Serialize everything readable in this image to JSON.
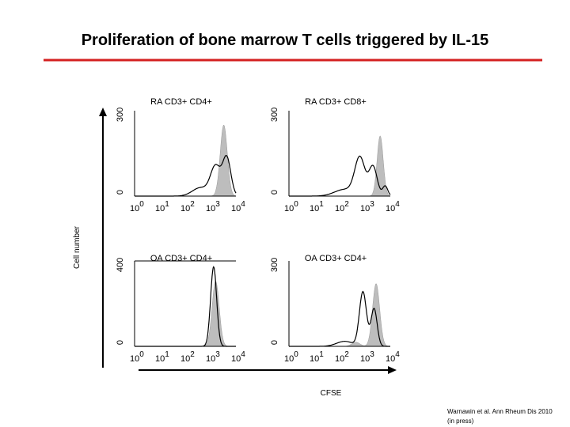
{
  "title": "Proliferation of bone marrow T cells triggered by IL-15",
  "y_axis_label": "Cell number",
  "x_axis_label": "CFSE",
  "citation": [
    "Warnawin et al. Ann Rheum Dis 2010",
    "(in press)"
  ],
  "panels": [
    {
      "label": "RA CD3+ CD4+",
      "y_ticks": [
        "0",
        "300"
      ],
      "x_ticks": [
        {
          "base": "10",
          "exp": "0"
        },
        {
          "base": "10",
          "exp": "1"
        },
        {
          "base": "10",
          "exp": "2"
        },
        {
          "base": "10",
          "exp": "3"
        },
        {
          "base": "10",
          "exp": "4"
        }
      ]
    },
    {
      "label": "RA CD3+ CD8+",
      "y_ticks": [
        "0",
        "300"
      ],
      "x_ticks": [
        {
          "base": "10",
          "exp": "0"
        },
        {
          "base": "10",
          "exp": "1"
        },
        {
          "base": "10",
          "exp": "2"
        },
        {
          "base": "10",
          "exp": "3"
        },
        {
          "base": "10",
          "exp": "4"
        }
      ]
    },
    {
      "label": "OA CD3+ CD4+",
      "y_ticks": [
        "0",
        "400"
      ],
      "x_ticks": [
        {
          "base": "10",
          "exp": "0"
        },
        {
          "base": "10",
          "exp": "1"
        },
        {
          "base": "10",
          "exp": "2"
        },
        {
          "base": "10",
          "exp": "3"
        },
        {
          "base": "10",
          "exp": "4"
        }
      ]
    },
    {
      "label": "OA CD3+ CD4+",
      "y_ticks": [
        "0",
        "300"
      ],
      "x_ticks": [
        {
          "base": "10",
          "exp": "0"
        },
        {
          "base": "10",
          "exp": "1"
        },
        {
          "base": "10",
          "exp": "2"
        },
        {
          "base": "10",
          "exp": "3"
        },
        {
          "base": "10",
          "exp": "4"
        }
      ]
    }
  ]
}
